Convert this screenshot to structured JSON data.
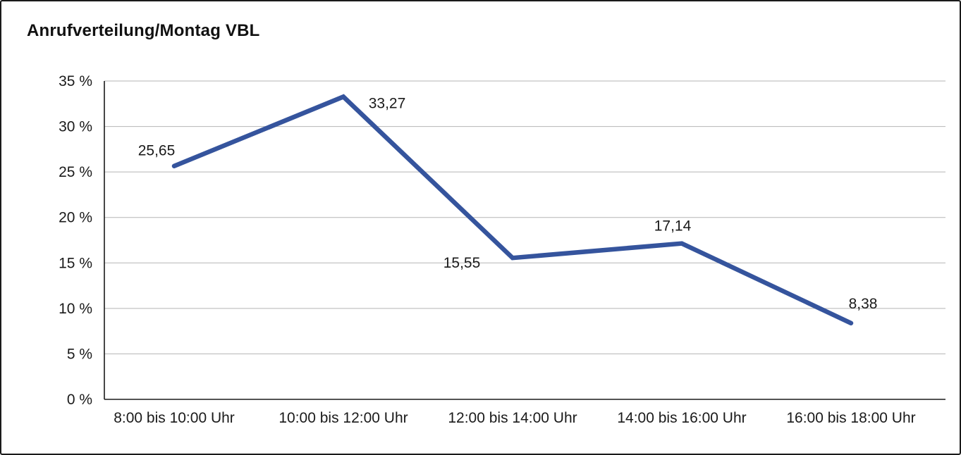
{
  "page": {
    "title": "Anrufverteilung/Montag VBL"
  },
  "chart_data": {
    "type": "line",
    "title": "Anrufverteilung/Montag VBL",
    "categories": [
      "8:00 bis 10:00 Uhr",
      "10:00 bis 12:00 Uhr",
      "12:00 bis 14:00 Uhr",
      "14:00 bis 16:00 Uhr",
      "16:00 bis 18:00 Uhr"
    ],
    "series": [
      {
        "values": [
          25.65,
          33.27,
          15.55,
          17.14,
          8.38
        ],
        "data_labels": [
          "25,65",
          "33,27",
          "15,55",
          "17,14",
          "8,38"
        ]
      }
    ],
    "xlabel": "",
    "ylabel": "",
    "ylim": [
      0,
      35
    ],
    "ytick_step": 5,
    "ytick_labels": [
      "0 %",
      "5 %",
      "10 %",
      "15 %",
      "20 %",
      "25 %",
      "30 %",
      "35 %"
    ],
    "grid": true,
    "legend": "none",
    "line_color": "#35549D",
    "grid_color": "#b5b5b5",
    "axis_color": "#1a1a1a",
    "text_color": "#1a1a1a"
  }
}
